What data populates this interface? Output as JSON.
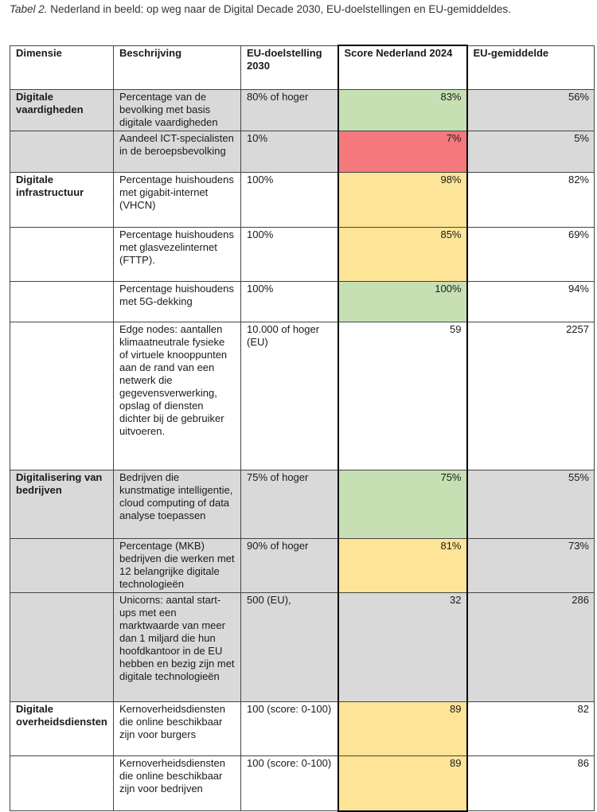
{
  "caption": {
    "label": "Tabel 2.",
    "text": " Nederland in beeld: op weg naar de Digital Decade 2030, EU-doelstellingen en EU-gemiddeldes."
  },
  "headers": [
    "Dimensie",
    "Beschrijving",
    "EU-doelstelling 2030",
    "Score Nederland 2024",
    "EU-gemiddelde"
  ],
  "rows": [
    {
      "dimension": "Digitale vaardigheden",
      "description": "Percentage van de bevolking met basis digitale vaardigheden",
      "target": "80% of hoger",
      "score": "83%",
      "score_status": "green",
      "eu_avg": "56%"
    },
    {
      "dimension": "",
      "description": "Aandeel ICT-specialisten in de beroepsbevolking",
      "target": "10%",
      "score": "7%",
      "score_status": "red",
      "eu_avg": "5%"
    },
    {
      "dimension": "Digitale infrastructuur",
      "description": "Percentage huishoudens met gigabit-internet (VHCN)",
      "target": "100%",
      "score": "98%",
      "score_status": "yellow",
      "eu_avg": "82%"
    },
    {
      "dimension": "",
      "description": "Percentage huishoudens met glasvezelinternet (FTTP).",
      "target": "100%",
      "score": "85%",
      "score_status": "yellow",
      "eu_avg": "69%"
    },
    {
      "dimension": "",
      "description": "Percentage huishoudens met 5G-dekking",
      "target": "100%",
      "score": "100%",
      "score_status": "green",
      "eu_avg": "94%"
    },
    {
      "dimension": "",
      "description": "Edge nodes: aantallen klimaatneutrale fysieke of virtuele knooppunten aan de rand van een netwerk die gegevensverwerking, opslag of diensten dichter bij de gebruiker uitvoeren.",
      "target": "10.000 of hoger (EU)",
      "score": "59",
      "score_status": "none",
      "eu_avg": "2257"
    },
    {
      "dimension": "Digitalisering van bedrijven",
      "description": "Bedrijven die kunstmatige intelligentie, cloud computing of data analyse toepassen",
      "target": "75% of hoger",
      "score": "75%",
      "score_status": "green",
      "eu_avg": "55%"
    },
    {
      "dimension": "",
      "description": "Percentage (MKB) bedrijven die werken met 12 belangrijke digitale technologieën",
      "target": "90% of hoger",
      "score": "81%",
      "score_status": "yellow",
      "eu_avg": "73%"
    },
    {
      "dimension": "",
      "description": "Unicorns: aantal start-ups met een marktwaarde van meer dan 1 miljard die hun hoofdkantoor in de EU hebben en bezig zijn met digitale technologieën",
      "target": "500 (EU),",
      "score": "32",
      "score_status": "none",
      "eu_avg": "286"
    },
    {
      "dimension": "Digitale overheidsdiensten",
      "description": "Kernoverheidsdiensten die online beschikbaar zijn voor burgers",
      "target": "100 (score: 0-100)",
      "score": "89",
      "score_status": "yellow",
      "eu_avg": "82"
    },
    {
      "dimension": "",
      "description": "Kernoverheidsdiensten die online beschikbaar zijn voor bedrijven",
      "target": "100 (score: 0-100)",
      "score": "89",
      "score_status": "yellow",
      "eu_avg": "86"
    }
  ],
  "colors": {
    "green": "#c6e0b4",
    "red": "#f4787c",
    "yellow": "#fde497",
    "gray_row": "#d9d9d9"
  }
}
